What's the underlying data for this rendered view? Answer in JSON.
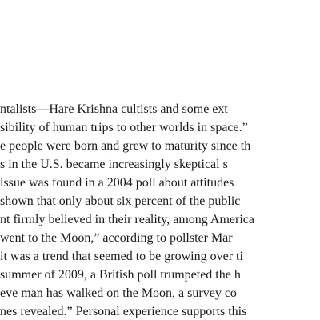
{
  "document": {
    "lines": [
      "ntalists—Hare Krishna cultists and some ext",
      "sibility of human trips to other worlds in space.”",
      "e people were born and grew to maturity since th",
      "s in the U.S. became increasingly skeptical s",
      " issue was found in a 2004 poll about attitudes",
      " shown that only about six percent of the public",
      "nt firmly believed in their reality, among America",
      " went to the Moon,” according to pollster Mar",
      " it was a trend that seemed to be growing over ti",
      "summer of 2009, a British poll trumpeted the h",
      "eve man has walked on the Moon, a survey co",
      "nes revealed.” Personal experience supports this"
    ]
  }
}
